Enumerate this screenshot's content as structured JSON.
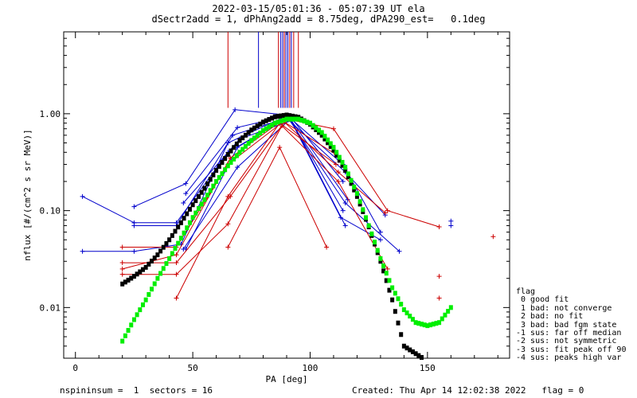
{
  "header": {
    "line1": "2022-03-15/05:01:36 - 05:07:39 UT ela",
    "line2": "dSectr2add = 1, dPhAng2add = 8.75deg, dPA290_est=   0.1deg"
  },
  "footer": {
    "left": "nspininsum =  1  sectors = 16",
    "right": "Created: Thu Apr 14 12:02:38 2022   flag = 0"
  },
  "legend": {
    "title": "flag",
    "items": [
      " 0 good fit",
      " 1 bad: not converge",
      " 2 bad: no fit",
      " 3 bad: bad fgm state",
      "-1 sus: far off median",
      "-2 sus: not symmetric",
      "-3 sus: fit peak off 90",
      "-4 sus: peaks high var"
    ]
  },
  "colors": {
    "blue": "#0000cc",
    "red": "#cc0000",
    "black": "#000000",
    "green": "#00ee00"
  },
  "chart_data": {
    "type": "scatter",
    "xlabel": "PA [deg]",
    "ylabel": "nflux [#/(cm^2 s sr MeV)]",
    "xlim": [
      -5,
      185
    ],
    "ylim": [
      0.003,
      7
    ],
    "yscale": "log",
    "x_ticks": [
      0,
      50,
      100,
      150
    ],
    "y_ticks": [
      0.01,
      0.1,
      1.0
    ],
    "y_tick_labels": [
      "0.01",
      "0.10",
      "1.00"
    ],
    "vertical_lines": [
      {
        "x": 65,
        "color": "red"
      },
      {
        "x": 78,
        "color": "blue"
      },
      {
        "x": 86.5,
        "color": "red"
      },
      {
        "x": 87.5,
        "color": "blue"
      },
      {
        "x": 88.3,
        "color": "blue"
      },
      {
        "x": 89,
        "color": "red"
      },
      {
        "x": 89.7,
        "color": "blue"
      },
      {
        "x": 90.5,
        "color": "blue"
      },
      {
        "x": 91.3,
        "color": "red"
      },
      {
        "x": 92,
        "color": "blue"
      },
      {
        "x": 93,
        "color": "red"
      },
      {
        "x": 95,
        "color": "red"
      }
    ],
    "series": [
      {
        "color": "blue",
        "points": [
          [
            3,
            0.14
          ],
          [
            25,
            0.075
          ],
          [
            43,
            0.075
          ],
          [
            65,
            0.4
          ],
          [
            90,
            0.9
          ],
          [
            115,
            0.25
          ],
          [
            132,
            0.09
          ]
        ]
      },
      {
        "color": "blue",
        "points": [
          [
            3,
            0.038
          ],
          [
            25,
            0.038
          ],
          [
            45,
            0.045
          ],
          [
            65,
            0.5
          ],
          [
            90,
            0.95
          ],
          [
            115,
            0.12
          ],
          [
            138,
            0.038
          ]
        ]
      },
      {
        "color": "blue",
        "points": [
          [
            25,
            0.07
          ],
          [
            43,
            0.07
          ],
          [
            67,
            0.6
          ],
          [
            91,
            0.92
          ],
          [
            114,
            0.1
          ]
        ]
      },
      {
        "color": "blue",
        "points": [
          [
            25,
            0.11
          ],
          [
            47,
            0.19
          ],
          [
            68,
            1.1
          ],
          [
            90,
            0.97
          ],
          [
            114,
            0.3
          ],
          [
            130,
            0.06
          ]
        ]
      },
      {
        "color": "blue",
        "points": [
          [
            47,
            0.15
          ],
          [
            69,
            0.72
          ],
          [
            91,
            0.96
          ],
          [
            115,
            0.07
          ]
        ]
      },
      {
        "color": "blue",
        "points": [
          [
            47,
            0.04
          ],
          [
            69,
            0.45
          ],
          [
            91,
            0.93
          ],
          [
            113,
            0.085
          ],
          [
            130,
            0.05
          ]
        ]
      },
      {
        "color": "blue",
        "points": [
          [
            46,
            0.04
          ],
          [
            69,
            0.28
          ],
          [
            92,
            0.9
          ],
          [
            114,
            0.2
          ]
        ]
      },
      {
        "color": "blue",
        "points": [
          [
            46,
            0.12
          ],
          [
            70,
            0.55
          ],
          [
            92,
            0.85
          ],
          [
            116,
            0.13
          ]
        ]
      },
      {
        "color": "blue",
        "points": [
          [
            160,
            0.07
          ]
        ]
      },
      {
        "color": "blue",
        "points": [
          [
            160,
            0.078
          ]
        ]
      },
      {
        "color": "red",
        "points": [
          [
            20,
            0.042
          ],
          [
            43,
            0.042
          ],
          [
            65,
            0.3
          ],
          [
            90,
            0.88
          ],
          [
            110,
            0.7
          ],
          [
            133,
            0.1
          ],
          [
            155,
            0.068
          ]
        ]
      },
      {
        "color": "red",
        "points": [
          [
            20,
            0.029
          ],
          [
            43,
            0.029
          ],
          [
            66,
            0.14
          ],
          [
            89,
            0.82
          ],
          [
            112,
            0.25
          ],
          [
            132,
            0.095
          ]
        ]
      },
      {
        "color": "red",
        "points": [
          [
            20,
            0.025
          ],
          [
            43,
            0.035
          ],
          [
            66,
            0.35
          ],
          [
            88,
            0.85
          ],
          [
            111,
            0.38
          ]
        ]
      },
      {
        "color": "red",
        "points": [
          [
            20,
            0.022
          ],
          [
            43,
            0.022
          ],
          [
            65,
            0.073
          ],
          [
            88,
            0.75
          ],
          [
            112,
            0.2
          ],
          [
            133,
            0.025
          ]
        ]
      },
      {
        "color": "red",
        "points": [
          [
            43,
            0.0125
          ],
          [
            65,
            0.14
          ],
          [
            87,
            0.8
          ],
          [
            111,
            0.3
          ]
        ]
      },
      {
        "color": "red",
        "points": [
          [
            65,
            0.042
          ],
          [
            87,
            0.45
          ],
          [
            107,
            0.042
          ]
        ]
      },
      {
        "color": "red",
        "points": [
          [
            155,
            0.021
          ]
        ]
      },
      {
        "color": "red",
        "points": [
          [
            155,
            0.0125
          ]
        ]
      },
      {
        "color": "red",
        "points": [
          [
            178,
            0.054
          ]
        ]
      }
    ],
    "fits": [
      {
        "color": "black",
        "points": [
          [
            20,
            0.0175
          ],
          [
            25,
            0.021
          ],
          [
            30,
            0.026
          ],
          [
            35,
            0.035
          ],
          [
            40,
            0.05
          ],
          [
            45,
            0.075
          ],
          [
            50,
            0.115
          ],
          [
            55,
            0.17
          ],
          [
            60,
            0.26
          ],
          [
            65,
            0.38
          ],
          [
            70,
            0.53
          ],
          [
            75,
            0.68
          ],
          [
            80,
            0.82
          ],
          [
            85,
            0.93
          ],
          [
            90,
            0.97
          ],
          [
            95,
            0.92
          ],
          [
            100,
            0.78
          ],
          [
            105,
            0.6
          ],
          [
            110,
            0.42
          ],
          [
            115,
            0.26
          ],
          [
            120,
            0.14
          ],
          [
            125,
            0.068
          ],
          [
            130,
            0.03
          ],
          [
            135,
            0.012
          ],
          [
            140,
            0.004
          ],
          [
            148,
            0.003
          ]
        ]
      },
      {
        "color": "green",
        "points": [
          [
            20,
            0.0045
          ],
          [
            25,
            0.0075
          ],
          [
            30,
            0.012
          ],
          [
            35,
            0.02
          ],
          [
            40,
            0.032
          ],
          [
            45,
            0.052
          ],
          [
            50,
            0.085
          ],
          [
            55,
            0.13
          ],
          [
            60,
            0.2
          ],
          [
            65,
            0.29
          ],
          [
            70,
            0.4
          ],
          [
            75,
            0.53
          ],
          [
            80,
            0.67
          ],
          [
            85,
            0.8
          ],
          [
            90,
            0.88
          ],
          [
            95,
            0.88
          ],
          [
            100,
            0.8
          ],
          [
            105,
            0.64
          ],
          [
            110,
            0.45
          ],
          [
            115,
            0.28
          ],
          [
            120,
            0.15
          ],
          [
            125,
            0.07
          ],
          [
            130,
            0.032
          ],
          [
            135,
            0.016
          ],
          [
            140,
            0.0095
          ],
          [
            145,
            0.007
          ],
          [
            150,
            0.0065
          ],
          [
            155,
            0.007
          ],
          [
            160,
            0.01
          ]
        ]
      }
    ]
  }
}
